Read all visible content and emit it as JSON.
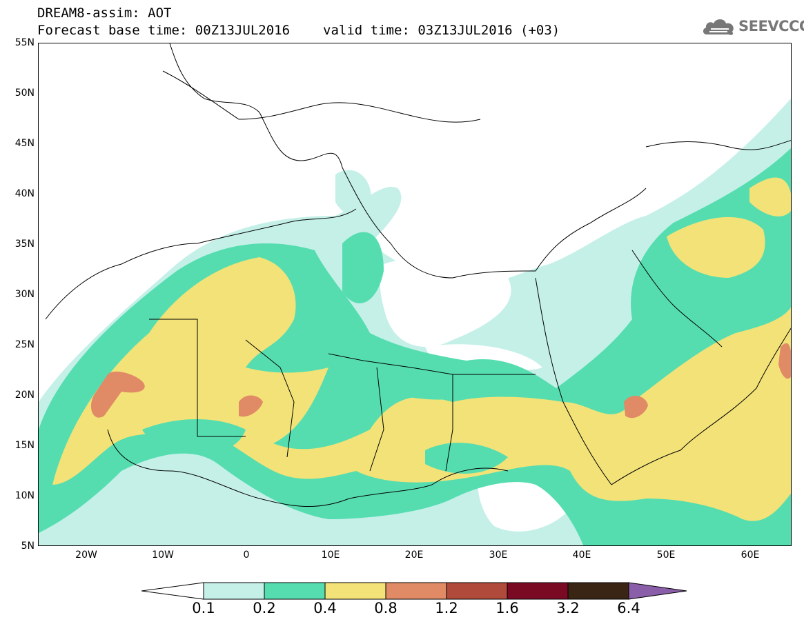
{
  "header": {
    "title": "DREAM8-assim: AOT",
    "base_time": "Forecast base time: 00Z13JUL2016",
    "valid_time": "valid time: 03Z13JUL2016 (+03)"
  },
  "logo": {
    "text": "SEEVCCC",
    "icon": "cloud-icon"
  },
  "map": {
    "lon_range": [
      -25,
      65
    ],
    "lat_range": [
      5,
      55
    ],
    "lat_ticks": [
      "55N",
      "50N",
      "45N",
      "40N",
      "35N",
      "30N",
      "25N",
      "20N",
      "15N",
      "10N",
      "5N"
    ],
    "lon_ticks": [
      "20W",
      "10W",
      "0",
      "10E",
      "20E",
      "30E",
      "40E",
      "50E",
      "60E"
    ]
  },
  "legend": {
    "boundaries": [
      "0.1",
      "0.2",
      "0.4",
      "0.8",
      "1.2",
      "1.6",
      "3.2",
      "6.4"
    ],
    "colors": [
      "#c4f0e8",
      "#55ddb0",
      "#f2e278",
      "#e08a66",
      "#b04a3a",
      "#7a0a24",
      "#3a2414",
      "#8a5ea8"
    ],
    "colors_meaning": "AOT classes from 0.1 to above 6.4"
  }
}
